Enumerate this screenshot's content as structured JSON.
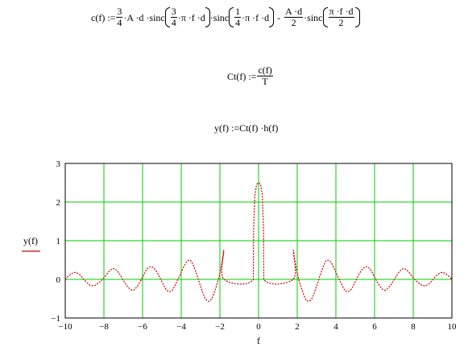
{
  "equations": {
    "c_def": {
      "lhs": "c(f) :=",
      "f34_num": "3",
      "f34_den": "4",
      "t1": "·A ·d ·sinc",
      "in1_num": "3",
      "in1_den": "4",
      "in1_tail": "·π ·f ·d",
      "t2": "·sinc",
      "in2_num": "1",
      "in2_den": "4",
      "in2_tail": "·π ·f ·d",
      "minus": "-",
      "fAd_num": "A ·d",
      "fAd_den": "2",
      "t3": "·sinc",
      "in3_num": "π ·f ·d",
      "in3_den": "2"
    },
    "Ct_def": {
      "lhs": "Ct(f) :=",
      "num": "c(f)",
      "den": "T"
    },
    "y_def": {
      "text": "y(f) :=Ct(f) ·h(f)"
    }
  },
  "chart_data": {
    "type": "line",
    "xlabel": "f",
    "ylabel": "y(f)",
    "xlim": [
      -10,
      10
    ],
    "ylim": [
      -1,
      3
    ],
    "xticks": [
      -10,
      -8,
      -6,
      -4,
      -2,
      0,
      2,
      4,
      6,
      8,
      10
    ],
    "yticks": [
      -1,
      0,
      1,
      2,
      3
    ],
    "grid": true,
    "colors": {
      "grid": "#00cc00",
      "trace": "#cc0000",
      "axis": "#000000"
    },
    "series": [
      {
        "style": "dotted",
        "x": [
          -10,
          -9.75,
          -9.5,
          -9.25,
          -9,
          -8.75,
          -8.5,
          -8.25,
          -8,
          -7.75,
          -7.5,
          -7.25,
          -7,
          -6.75,
          -6.5,
          -6.25,
          -6,
          -5.75,
          -5.5,
          -5.25,
          -5,
          -4.75,
          -4.5,
          -4.25,
          -4,
          -3.75,
          -3.5,
          -3.25,
          -3,
          -2.75,
          -2.5,
          -2.25,
          -2,
          -1.85,
          -1.8,
          -1.79,
          -0.27,
          -0.26,
          -0.2,
          -0.15,
          -0.1,
          -0.05,
          0,
          0.05,
          0.1,
          0.15,
          0.2,
          0.26,
          0.27,
          1.79,
          1.8,
          1.85,
          2,
          2.25,
          2.5,
          2.75,
          3,
          3.25,
          3.5,
          3.75,
          4,
          4.25,
          4.5,
          4.75,
          5,
          5.25,
          5.5,
          5.75,
          6,
          6.25,
          6.5,
          6.75,
          7,
          7.25,
          7.5,
          7.75,
          8,
          8.25,
          8.5,
          8.75,
          9,
          9.25,
          9.5,
          9.75,
          10
        ],
        "y": [
          0,
          0.12,
          0.18,
          0.12,
          -0.02,
          -0.14,
          -0.16,
          -0.08,
          0.04,
          0.2,
          0.28,
          0.18,
          -0.02,
          -0.2,
          -0.28,
          -0.16,
          0.06,
          0.28,
          0.32,
          0.18,
          -0.06,
          -0.28,
          -0.3,
          -0.08,
          0.18,
          0.44,
          0.48,
          0.2,
          -0.18,
          -0.5,
          -0.55,
          -0.28,
          0.16,
          0.58,
          0.72,
          0,
          0,
          1.2,
          2.1,
          2.3,
          2.45,
          2.48,
          2.5,
          2.48,
          2.45,
          2.3,
          2.1,
          1.2,
          0,
          0,
          0.72,
          0.58,
          0.16,
          -0.28,
          -0.55,
          -0.5,
          -0.18,
          0.2,
          0.48,
          0.44,
          0.18,
          -0.08,
          -0.3,
          -0.28,
          -0.06,
          0.18,
          0.32,
          0.28,
          0.06,
          -0.16,
          -0.28,
          -0.2,
          -0.02,
          0.18,
          0.28,
          0.2,
          0.04,
          -0.08,
          -0.16,
          -0.14,
          -0.02,
          0.12,
          0.18,
          0.12,
          0
        ]
      }
    ]
  }
}
